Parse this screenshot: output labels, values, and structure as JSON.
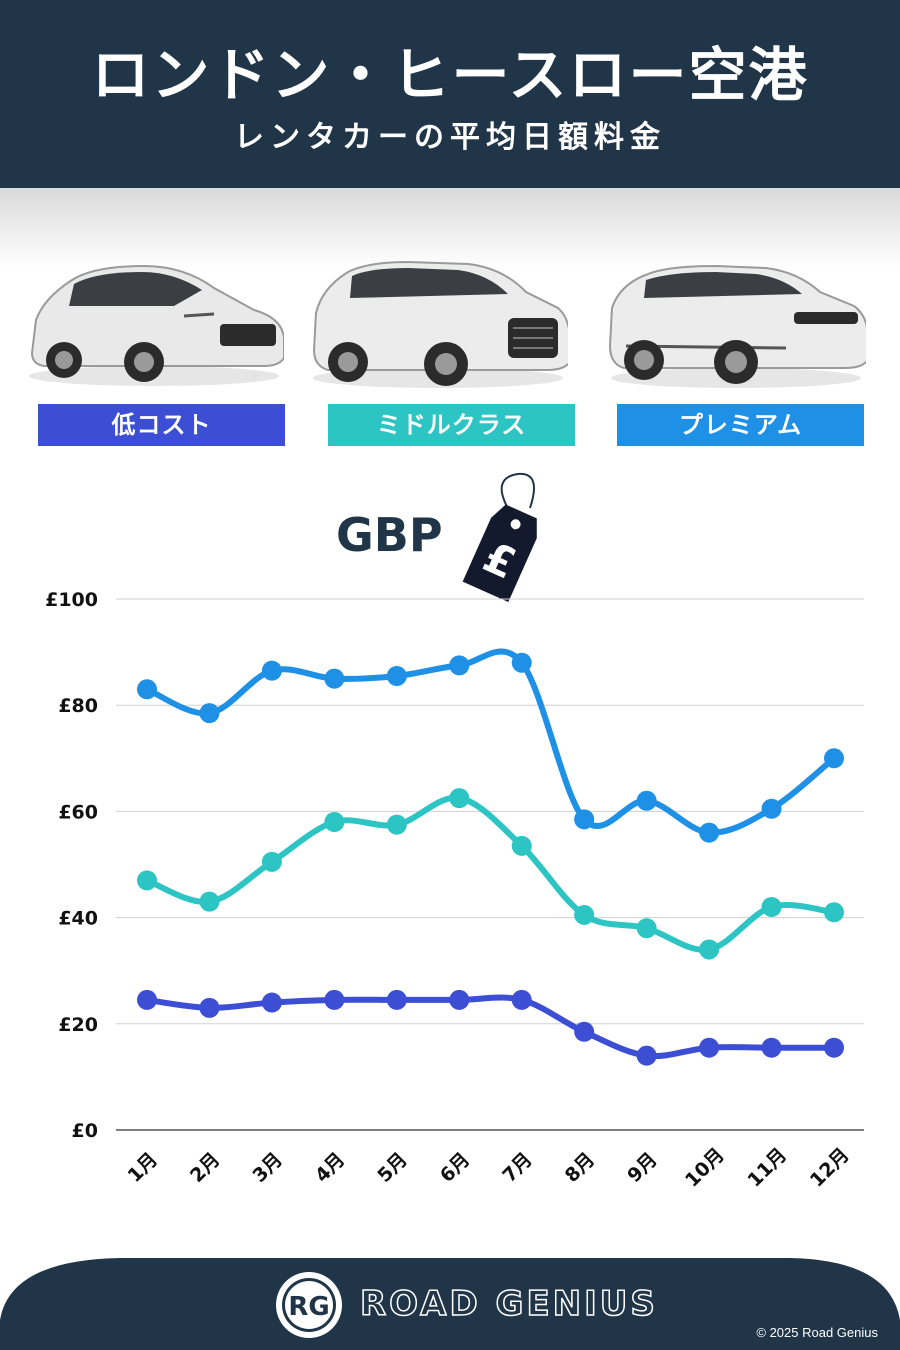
{
  "header": {
    "title": "ロンドン・ヒースロー空港",
    "subtitle": "レンタカーの平均日額料金"
  },
  "categories": [
    {
      "label": "低コスト",
      "color": "#3c4fd4"
    },
    {
      "label": "ミドルクラス",
      "color": "#2dc4c4"
    },
    {
      "label": "プレミアム",
      "color": "#1e90e6"
    }
  ],
  "currency": {
    "label": "GBP",
    "symbol": "£"
  },
  "chart_data": {
    "type": "line",
    "categories": [
      "1月",
      "2月",
      "3月",
      "4月",
      "5月",
      "6月",
      "7月",
      "8月",
      "9月",
      "10月",
      "11月",
      "12月"
    ],
    "series": [
      {
        "name": "プレミアム",
        "color": "#1e90e6",
        "values": [
          83,
          78.5,
          86.5,
          85,
          85.5,
          87.5,
          88,
          58.5,
          62,
          56,
          60.5,
          70
        ]
      },
      {
        "name": "ミドルクラス",
        "color": "#2dc4c4",
        "values": [
          47,
          43,
          50.5,
          58,
          57.5,
          62.5,
          53.5,
          40.5,
          38,
          34,
          42,
          41
        ]
      },
      {
        "name": "低コスト",
        "color": "#3c4fd4",
        "values": [
          24.5,
          23,
          24,
          24.5,
          24.5,
          24.5,
          24.5,
          18.5,
          14,
          15.5,
          15.5,
          15.5
        ]
      }
    ],
    "yticks": [
      "£0",
      "£20",
      "£40",
      "£60",
      "£80",
      "£100"
    ],
    "ylim": [
      0,
      100
    ],
    "grid": true
  },
  "footer": {
    "brand": "ROAD GENIUS",
    "logo_text": "RG",
    "copyright": "© 2025 Road Genius"
  }
}
